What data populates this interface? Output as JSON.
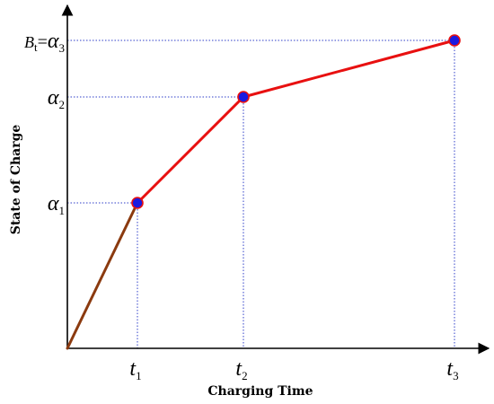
{
  "chart_data": {
    "type": "line",
    "xlabel": "Charging Time",
    "ylabel": "State of Charge",
    "x_ticks": [
      {
        "symbol": "t",
        "sub": "1",
        "value": 1
      },
      {
        "symbol": "t",
        "sub": "2",
        "value": 2
      },
      {
        "symbol": "t",
        "sub": "3",
        "value": 3
      }
    ],
    "y_ticks": [
      {
        "prefix": "",
        "symbol": "α",
        "sub": "1",
        "value": 1
      },
      {
        "prefix": "",
        "symbol": "α",
        "sub": "2",
        "value": 2
      },
      {
        "prefix_symbol": "B",
        "prefix_sub": "t",
        "symbol": "α",
        "sub": "3",
        "value": 3
      }
    ],
    "points": [
      {
        "x": 0,
        "y": 0
      },
      {
        "x": 1,
        "y": 1
      },
      {
        "x": 2,
        "y": 2
      },
      {
        "x": 3,
        "y": 3
      }
    ],
    "segments": [
      {
        "from": 0,
        "to": 1,
        "color": "#8b3a0f"
      },
      {
        "from": 1,
        "to": 2,
        "color": "#e81010"
      },
      {
        "from": 2,
        "to": 3,
        "color": "#e81010"
      }
    ],
    "marker_fill": "#1a1ae0",
    "marker_stroke": "#e81010",
    "guide_color": "#2f3fc8",
    "axis_color": "#000000",
    "grid": false,
    "legend": "none"
  }
}
